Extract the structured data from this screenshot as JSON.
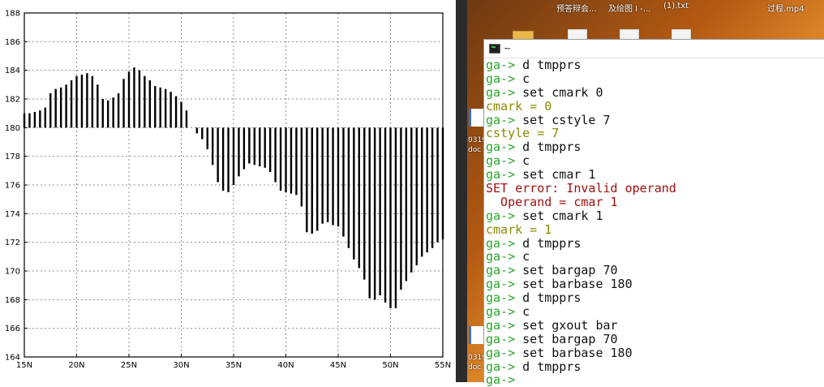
{
  "chart_data": {
    "type": "bar",
    "baseline": 180,
    "ylim": [
      164,
      188
    ],
    "yticks": [
      "164",
      "166",
      "168",
      "170",
      "172",
      "174",
      "176",
      "178",
      "180",
      "182",
      "184",
      "186",
      "188"
    ],
    "xlim": [
      15,
      55
    ],
    "xticks": [
      "15N",
      "20N",
      "25N",
      "30N",
      "35N",
      "40N",
      "45N",
      "50N",
      "55N"
    ],
    "grid": true,
    "x": [
      15.0,
      15.5,
      16.0,
      16.5,
      17.0,
      17.5,
      18.0,
      18.5,
      19.0,
      19.5,
      20.0,
      20.5,
      21.0,
      21.5,
      22.0,
      22.5,
      23.0,
      23.5,
      24.0,
      24.5,
      25.0,
      25.5,
      26.0,
      26.5,
      27.0,
      27.5,
      28.0,
      28.5,
      29.0,
      29.5,
      30.0,
      30.5,
      31.0,
      31.5,
      32.0,
      32.5,
      33.0,
      33.5,
      34.0,
      34.5,
      35.0,
      35.5,
      36.0,
      36.5,
      37.0,
      37.5,
      38.0,
      38.5,
      39.0,
      39.5,
      40.0,
      40.5,
      41.0,
      41.5,
      42.0,
      42.5,
      43.0,
      43.5,
      44.0,
      44.5,
      45.0,
      45.5,
      46.0,
      46.5,
      47.0,
      47.5,
      48.0,
      48.5,
      49.0,
      49.5,
      50.0,
      50.5,
      51.0,
      51.5,
      52.0,
      52.5,
      53.0,
      53.5,
      54.0,
      54.5,
      55.0
    ],
    "values": [
      181.0,
      181.0,
      181.1,
      181.2,
      181.4,
      182.4,
      182.7,
      182.8,
      183.0,
      183.3,
      183.6,
      183.7,
      183.8,
      183.6,
      183.0,
      182.0,
      181.9,
      182.1,
      182.4,
      183.4,
      183.9,
      184.2,
      184.0,
      183.6,
      183.3,
      182.9,
      182.8,
      182.7,
      182.5,
      182.2,
      181.8,
      181.2,
      180.0,
      179.6,
      179.2,
      178.5,
      177.4,
      176.2,
      175.6,
      175.5,
      176.0,
      176.6,
      177.1,
      177.5,
      177.4,
      177.3,
      177.2,
      176.9,
      176.2,
      175.6,
      175.5,
      175.4,
      175.3,
      174.5,
      172.7,
      172.6,
      172.8,
      173.3,
      173.4,
      173.2,
      173.1,
      172.4,
      171.6,
      170.8,
      170.2,
      169.4,
      168.1,
      168.0,
      168.3,
      167.8,
      167.4,
      167.4,
      168.7,
      169.3,
      169.9,
      170.4,
      171.0,
      171.3,
      171.6,
      172.0,
      172.2
    ]
  },
  "desktop": {
    "top_labels": [
      "预答辩会...",
      "及绘图 I -...",
      "(1).txt",
      "过程.mp4"
    ],
    "side_labels": [
      "0319",
      "doc",
      "0319",
      "doc"
    ]
  },
  "terminal": {
    "title": "~",
    "lines": [
      {
        "type": "cmd",
        "prompt": "ga-> ",
        "text": "d tmpprs"
      },
      {
        "type": "cmd",
        "prompt": "ga-> ",
        "text": "c"
      },
      {
        "type": "cmd",
        "prompt": "ga-> ",
        "text": "set cmark 0"
      },
      {
        "type": "echo",
        "text": "cmark = 0"
      },
      {
        "type": "cmd",
        "prompt": "ga-> ",
        "text": "set cstyle 7"
      },
      {
        "type": "echo",
        "text": "cstyle = 7"
      },
      {
        "type": "cmd",
        "prompt": "ga-> ",
        "text": "d tmpprs"
      },
      {
        "type": "cmd",
        "prompt": "ga-> ",
        "text": "c"
      },
      {
        "type": "cmd",
        "prompt": "ga-> ",
        "text": "set cmar 1"
      },
      {
        "type": "error",
        "text": "SET error: Invalid operand"
      },
      {
        "type": "error",
        "text": "  Operand = cmar 1"
      },
      {
        "type": "cmd",
        "prompt": "ga-> ",
        "text": "set cmark 1"
      },
      {
        "type": "echo",
        "text": "cmark = 1"
      },
      {
        "type": "cmd",
        "prompt": "ga-> ",
        "text": "d tmpprs"
      },
      {
        "type": "cmd",
        "prompt": "ga-> ",
        "text": "c"
      },
      {
        "type": "cmd",
        "prompt": "ga-> ",
        "text": "set bargap 70"
      },
      {
        "type": "cmd",
        "prompt": "ga-> ",
        "text": "set barbase 180"
      },
      {
        "type": "cmd",
        "prompt": "ga-> ",
        "text": "d tmpprs"
      },
      {
        "type": "cmd",
        "prompt": "ga-> ",
        "text": "c"
      },
      {
        "type": "cmd",
        "prompt": "ga-> ",
        "text": "set gxout bar"
      },
      {
        "type": "cmd",
        "prompt": "ga-> ",
        "text": "set bargap 70"
      },
      {
        "type": "cmd",
        "prompt": "ga-> ",
        "text": "set barbase 180"
      },
      {
        "type": "cmd",
        "prompt": "ga-> ",
        "text": "d tmpprs"
      },
      {
        "type": "cmd",
        "prompt": "ga-> ",
        "text": ""
      }
    ]
  }
}
